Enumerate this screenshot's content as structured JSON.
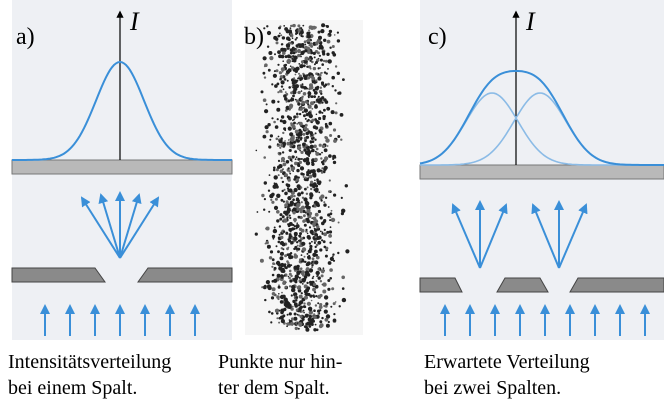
{
  "panels": [
    {
      "label": "a)",
      "axis_label": "I",
      "caption": [
        "Intensitätsverteilung",
        "bei einem Spalt."
      ]
    },
    {
      "label": "b)",
      "caption": [
        "Punkte nur hin-",
        "ter dem Spalt."
      ]
    },
    {
      "label": "c)",
      "axis_label": "I",
      "caption": [
        "Erwartete Verteilung",
        "bei zwei Spalten."
      ]
    }
  ]
}
